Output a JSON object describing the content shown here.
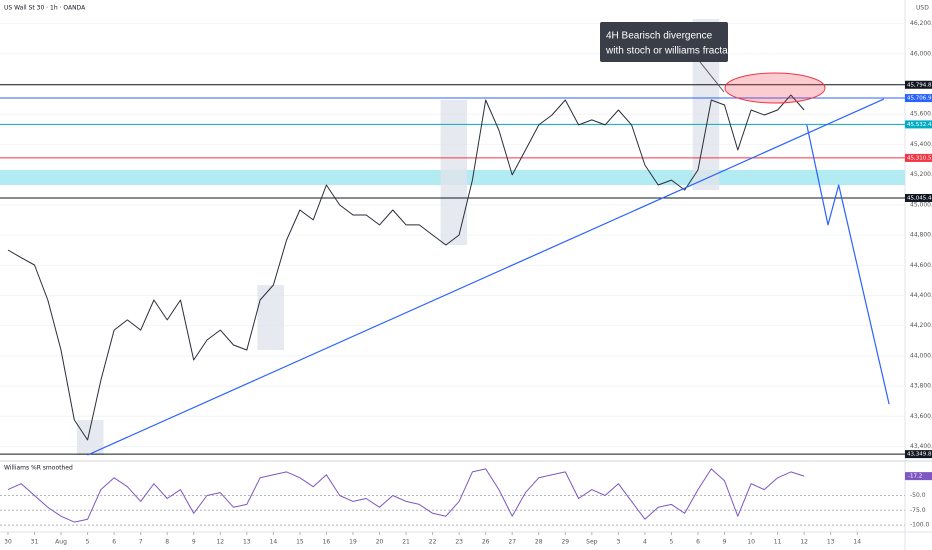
{
  "chart_data": [
    {
      "type": "line",
      "title": "US Wall St 30 · 1h · OANDA",
      "y_label": "USD",
      "annotation": [
        "4H Bearisch divergence",
        "with stoch or williams fractals smoothed"
      ],
      "xlim": [
        -0.3,
        33.8
      ],
      "ylim": [
        43324,
        46356
      ],
      "yticks": [
        {
          "value": 43400,
          "label": "43,400.0"
        },
        {
          "value": 43600,
          "label": "43,600.0"
        },
        {
          "value": 43800,
          "label": "43,800.0"
        },
        {
          "value": 44000,
          "label": "44,000.0"
        },
        {
          "value": 44200,
          "label": "44,200.0"
        },
        {
          "value": 44400,
          "label": "44,400.0"
        },
        {
          "value": 44600,
          "label": "44,600.0"
        },
        {
          "value": 44800,
          "label": "44,800.0"
        },
        {
          "value": 45000,
          "label": "45,000.0"
        },
        {
          "value": 45200,
          "label": "45,200.0"
        },
        {
          "value": 45400,
          "label": "45,400.0"
        },
        {
          "value": 45600,
          "label": "45,600.0"
        },
        {
          "value": 45800,
          "label": "45,800.0"
        },
        {
          "value": 46000,
          "label": "46,000.0"
        },
        {
          "value": 46200,
          "label": "46,200.0"
        }
      ],
      "levels": [
        {
          "value": 45794.8,
          "label": "45,794.8",
          "color": "#131722"
        },
        {
          "value": 45706.9,
          "label": "45,706.9",
          "color": "#2962ff"
        },
        {
          "value": 45532.4,
          "label": "45,532.4",
          "color": "#00acc1"
        },
        {
          "value": 45310.5,
          "label": "45,310.5",
          "color": "#f23645"
        },
        {
          "value": 45045.4,
          "label": "45,045.4",
          "color": "#131722"
        },
        {
          "value": 43349.8,
          "label": "43,349.8",
          "color": "#131722"
        }
      ],
      "zones": [
        {
          "ylim": [
            45131,
            45231
          ],
          "color": "#b2ebf2"
        }
      ],
      "highlights": [
        {
          "xlim": [
            2.6,
            3.6
          ],
          "ylim": [
            43344,
            43576
          ],
          "color": "#e0e3eb"
        },
        {
          "xlim": [
            9.4,
            10.4
          ],
          "ylim": [
            44039,
            44469
          ],
          "color": "#e0e3eb"
        },
        {
          "xlim": [
            16.3,
            17.3
          ],
          "ylim": [
            44734,
            45694
          ],
          "color": "#e0e3eb"
        },
        {
          "xlim": [
            25.8,
            26.8
          ],
          "ylim": [
            45098,
            46230
          ],
          "color": "#e0e3eb"
        }
      ],
      "series": [
        {
          "color": "#2a2e39",
          "x": [
            0,
            0.5,
            1,
            1.5,
            2,
            2.5,
            3,
            3.5,
            4,
            4.5,
            5,
            5.5,
            6,
            6.5,
            7,
            7.5,
            8,
            8.5,
            9,
            9.5,
            10,
            10.5,
            11,
            11.5,
            12,
            12.5,
            13,
            13.5,
            14,
            14.5,
            15,
            15.5,
            16,
            16.5,
            17,
            17.5,
            18,
            18.5,
            19,
            19.5,
            20,
            20.5,
            21,
            21.5,
            22,
            22.5,
            23,
            23.5,
            24,
            24.5,
            25,
            25.5,
            26,
            26.5,
            27,
            27.5,
            28,
            28.5,
            29,
            29.5,
            30
          ],
          "values": [
            44701,
            44650,
            44602,
            44370,
            44039,
            43576,
            43443,
            43840,
            44171,
            44238,
            44171,
            44370,
            44238,
            44370,
            43973,
            44105,
            44171,
            44072,
            44039,
            44370,
            44469,
            44767,
            44966,
            44900,
            45131,
            44999,
            44933,
            44933,
            44867,
            44966,
            44867,
            44867,
            44800,
            44734,
            44800,
            45164,
            45694,
            45495,
            45198,
            45363,
            45529,
            45595,
            45694,
            45529,
            45562,
            45529,
            45628,
            45529,
            45264,
            45131,
            45164,
            45098,
            45231,
            45694,
            45661,
            45363,
            45628,
            45595,
            45628,
            45727,
            45628
          ]
        },
        {
          "color": "#2962ff",
          "x": [
            3,
            33
          ],
          "values": [
            43344,
            45700
          ]
        },
        {
          "color": "#2962ff",
          "x": [
            30.1,
            30.9,
            31.3,
            33.2
          ],
          "values": [
            45529,
            44867,
            45131,
            43681
          ]
        }
      ]
    },
    {
      "type": "line",
      "title": "Williams %R smoothed",
      "xlim": [
        -0.3,
        33.8
      ],
      "ylim": [
        -110,
        5
      ],
      "yticks": [
        {
          "value": -50,
          "label": "-50.0"
        },
        {
          "value": -75,
          "label": "-75.0"
        },
        {
          "value": -100,
          "label": "-100.0"
        }
      ],
      "xticks": [
        {
          "value": 0,
          "label": "30"
        },
        {
          "value": 1,
          "label": "31"
        },
        {
          "value": 2,
          "label": "Aug"
        },
        {
          "value": 3,
          "label": "5"
        },
        {
          "value": 4,
          "label": "6"
        },
        {
          "value": 5,
          "label": "7"
        },
        {
          "value": 6,
          "label": "8"
        },
        {
          "value": 7,
          "label": "9"
        },
        {
          "value": 8,
          "label": "12"
        },
        {
          "value": 9,
          "label": "13"
        },
        {
          "value": 10,
          "label": "14"
        },
        {
          "value": 11,
          "label": "15"
        },
        {
          "value": 12,
          "label": "16"
        },
        {
          "value": 13,
          "label": "19"
        },
        {
          "value": 14,
          "label": "20"
        },
        {
          "value": 15,
          "label": "21"
        },
        {
          "value": 16,
          "label": "22"
        },
        {
          "value": 17,
          "label": "23"
        },
        {
          "value": 18,
          "label": "26"
        },
        {
          "value": 19,
          "label": "27"
        },
        {
          "value": 20,
          "label": "28"
        },
        {
          "value": 21,
          "label": "29"
        },
        {
          "value": 22,
          "label": "Sep"
        },
        {
          "value": 23,
          "label": "3"
        },
        {
          "value": 24,
          "label": "4"
        },
        {
          "value": 25,
          "label": "5"
        },
        {
          "value": 26,
          "label": "6"
        },
        {
          "value": 27,
          "label": "9"
        },
        {
          "value": 28,
          "label": "10"
        },
        {
          "value": 29,
          "label": "11"
        },
        {
          "value": 30,
          "label": "12"
        },
        {
          "value": 31,
          "label": "13"
        },
        {
          "value": 32,
          "label": "14"
        }
      ],
      "series": [
        {
          "color": "#7e57c2",
          "x": [
            0,
            0.5,
            1,
            1.5,
            2,
            2.5,
            3,
            3.5,
            4,
            4.5,
            5,
            5.5,
            6,
            6.5,
            7,
            7.5,
            8,
            8.5,
            9,
            9.5,
            10,
            10.5,
            11,
            11.5,
            12,
            12.5,
            13,
            13.5,
            14,
            14.5,
            15,
            15.5,
            16,
            16.5,
            17,
            17.5,
            18,
            18.5,
            19,
            19.5,
            20,
            20.5,
            21,
            21.5,
            22,
            22.5,
            23,
            23.5,
            24,
            24.5,
            25,
            25.5,
            26,
            26.5,
            27,
            27.5,
            28,
            28.5,
            29,
            29.5,
            30
          ],
          "values": [
            -40,
            -30,
            -50,
            -70,
            -85,
            -95,
            -90,
            -40,
            -20,
            -35,
            -60,
            -30,
            -55,
            -40,
            -80,
            -50,
            -45,
            -70,
            -65,
            -20,
            -15,
            -10,
            -20,
            -35,
            -15,
            -50,
            -60,
            -55,
            -70,
            -50,
            -60,
            -65,
            -80,
            -85,
            -60,
            -10,
            -5,
            -40,
            -85,
            -45,
            -20,
            -15,
            -10,
            -55,
            -40,
            -50,
            -30,
            -60,
            -90,
            -70,
            -65,
            -80,
            -40,
            -5,
            -25,
            -85,
            -30,
            -40,
            -20,
            -10,
            -17.2
          ]
        }
      ]
    }
  ]
}
